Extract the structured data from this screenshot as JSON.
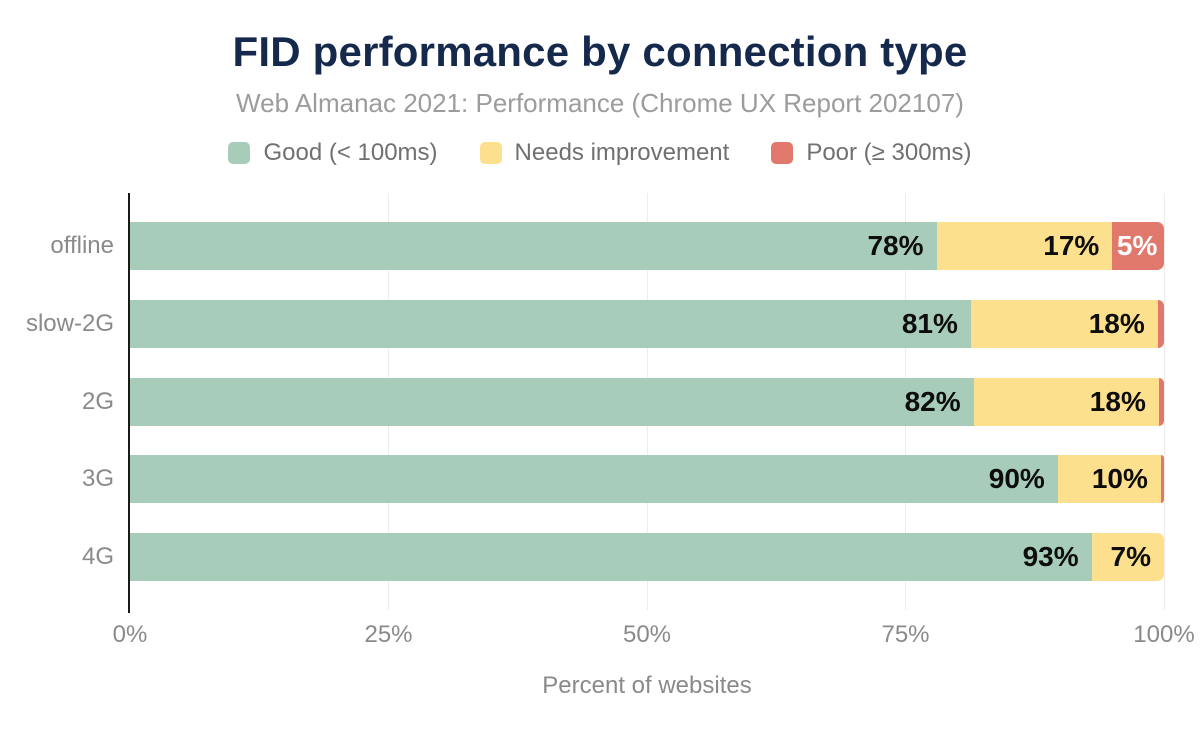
{
  "header": {
    "title": "FID performance by connection type",
    "subtitle": "Web Almanac 2021: Performance (Chrome UX Report 202107)"
  },
  "legend": {
    "items": [
      {
        "label": "Good (< 100ms)",
        "color": "#a8ccba"
      },
      {
        "label": "Needs improvement",
        "color": "#fde08d"
      },
      {
        "label": "Poor (≥ 300ms)",
        "color": "#e0786c"
      }
    ]
  },
  "colors": {
    "good": "#a8ccba",
    "needs_improvement": "#fde08d",
    "poor": "#e0786c",
    "title_text": "#15294d",
    "subtitle_text": "#9c9c9c",
    "axis_text": "#8a8a8a",
    "legend_text": "#707070",
    "value_label_text": "#0d0d0d",
    "poor_label_text": "#ffffff",
    "axis_line": "#1a1a1a",
    "gridline": "#ededed"
  },
  "chart_data": {
    "type": "bar",
    "orientation": "horizontal",
    "stacked": true,
    "title": "FID performance by connection type",
    "subtitle": "Web Almanac 2021: Performance (Chrome UX Report 202107)",
    "xlabel": "Percent of websites",
    "ylabel": "",
    "xlim": [
      0,
      100
    ],
    "grid": "vertical",
    "legend_position": "top",
    "categories": [
      "offline",
      "slow-2G",
      "2G",
      "3G",
      "4G"
    ],
    "series": [
      {
        "name": "Good (< 100ms)",
        "color": "#a8ccba",
        "label_color": "#0d0d0d",
        "values": [
          78,
          81,
          82,
          90,
          93
        ],
        "data_labels": [
          "78%",
          "81%",
          "82%",
          "90%",
          "93%"
        ]
      },
      {
        "name": "Needs improvement",
        "color": "#fde08d",
        "label_color": "#0d0d0d",
        "values": [
          17,
          18,
          18,
          10,
          7
        ],
        "data_labels": [
          "17%",
          "18%",
          "18%",
          "10%",
          "7%"
        ]
      },
      {
        "name": "Poor (≥ 300ms)",
        "color": "#e0786c",
        "label_color": "#ffffff",
        "values": [
          5,
          0.6,
          0.5,
          0.3,
          0
        ],
        "data_labels": [
          "5%",
          "",
          "",
          "",
          ""
        ]
      }
    ],
    "x_ticks": [
      {
        "value": 0,
        "label": "0%"
      },
      {
        "value": 25,
        "label": "25%"
      },
      {
        "value": 50,
        "label": "50%"
      },
      {
        "value": 75,
        "label": "75%"
      },
      {
        "value": 100,
        "label": "100%"
      }
    ]
  }
}
